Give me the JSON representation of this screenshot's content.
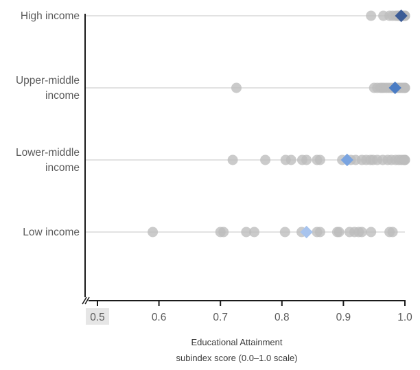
{
  "chart_data": {
    "type": "scatter",
    "title": "",
    "xlabel": [
      "Educational Attainment",
      "subindex score (0.0–1.0 scale)"
    ],
    "ylabel": "",
    "xlim": [
      0.5,
      1.0
    ],
    "xticks": [
      "0.5",
      "0.6",
      "0.7",
      "0.8",
      "0.9",
      "1.0"
    ],
    "axis_break": true,
    "grid": "horizontal lines per category",
    "categories": [
      {
        "label": [
          "High income"
        ],
        "values": [
          0.945,
          0.965,
          0.975,
          0.98,
          0.985,
          0.988,
          0.99,
          0.992,
          0.994,
          0.996,
          0.998,
          1.0,
          1.0,
          1.0,
          1.0
        ],
        "average": 0.994
      },
      {
        "label": [
          "Upper-middle",
          "income"
        ],
        "values": [
          0.726,
          0.95,
          0.955,
          0.96,
          0.963,
          0.966,
          0.97,
          0.974,
          0.978,
          0.982,
          0.985,
          0.988,
          0.99,
          0.992,
          0.994,
          0.996,
          0.998,
          1.0,
          1.0,
          1.0
        ],
        "average": 0.984
      },
      {
        "label": [
          "Lower-middle",
          "income"
        ],
        "values": [
          0.72,
          0.773,
          0.806,
          0.815,
          0.833,
          0.84,
          0.857,
          0.862,
          0.898,
          0.912,
          0.92,
          0.93,
          0.937,
          0.944,
          0.948,
          0.955,
          0.964,
          0.972,
          0.978,
          0.985,
          0.99,
          0.994,
          0.998,
          1.0,
          1.0
        ],
        "average": 0.906
      },
      {
        "label": [
          "Low income"
        ],
        "values": [
          0.59,
          0.7,
          0.705,
          0.742,
          0.755,
          0.805,
          0.832,
          0.857,
          0.862,
          0.89,
          0.893,
          0.91,
          0.918,
          0.925,
          0.93,
          0.945,
          0.975,
          0.98
        ],
        "average": 0.84
      }
    ],
    "colors": {
      "dot": "#bdbdbd",
      "average_markers": [
        "#3c5c96",
        "#4a7cc4",
        "#7aa4e0",
        "#a8c4ee"
      ],
      "axis": "#1a1a1a",
      "gridline": "#d0d0d0",
      "first_tick_bg": "#e6e6e6"
    }
  }
}
